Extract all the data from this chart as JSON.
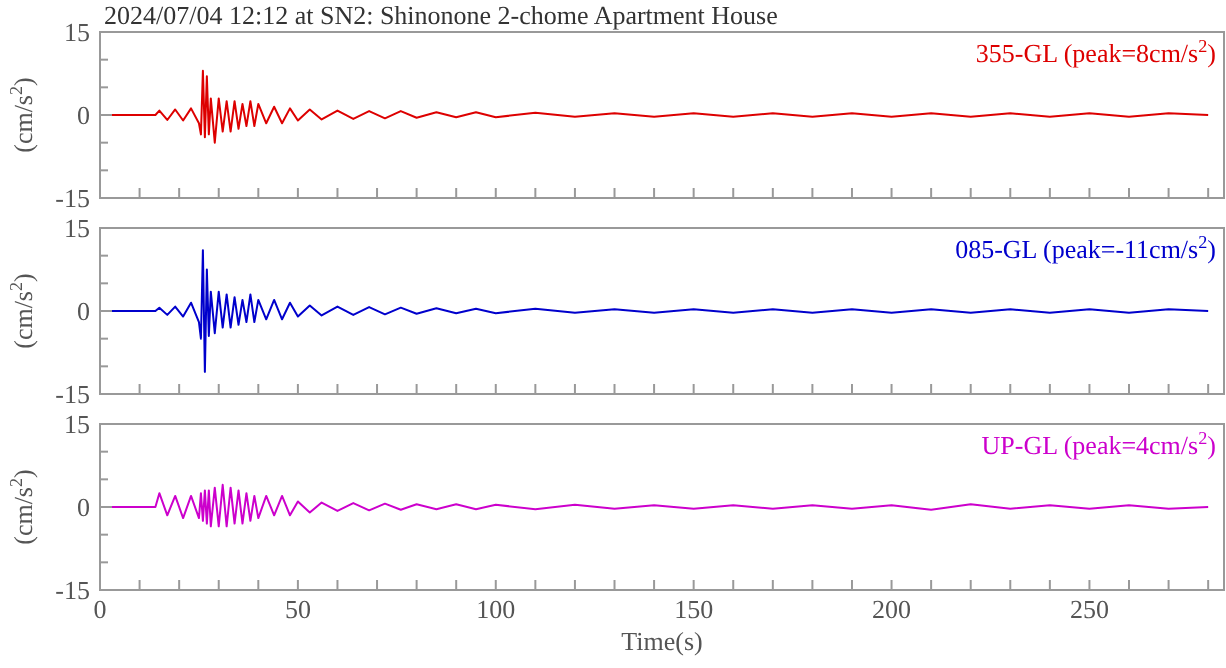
{
  "chart_data": [
    {
      "type": "line",
      "title": "2024/07/04 12:12 at SN2: Shinonone 2-chome Apartment House",
      "ylabel": "(cm/s$^{2}$)",
      "tick_labels": "y",
      "xlim": [
        0,
        284
      ],
      "ylim": [
        -15,
        15
      ],
      "yticks": [
        -15,
        {
          "value": -10,
          "label": null
        },
        {
          "value": -5,
          "label": null
        },
        0,
        {
          "value": 5,
          "label": null
        },
        {
          "value": 10,
          "label": null
        },
        15
      ],
      "xticks": [
        0,
        {
          "value": 10,
          "label": null
        },
        {
          "value": 20,
          "label": null
        },
        {
          "value": 30,
          "label": null
        },
        {
          "value": 40,
          "label": null
        },
        50,
        {
          "value": 60,
          "label": null
        },
        {
          "value": 70,
          "label": null
        },
        {
          "value": 80,
          "label": null
        },
        {
          "value": 90,
          "label": null
        },
        100,
        {
          "value": 110,
          "label": null
        },
        {
          "value": 120,
          "label": null
        },
        {
          "value": 130,
          "label": null
        },
        {
          "value": 140,
          "label": null
        },
        150,
        {
          "value": 160,
          "label": null
        },
        {
          "value": 170,
          "label": null
        },
        {
          "value": 180,
          "label": null
        },
        {
          "value": 190,
          "label": null
        },
        200,
        {
          "value": 210,
          "label": null
        },
        {
          "value": 220,
          "label": null
        },
        {
          "value": 230,
          "label": null
        },
        {
          "value": 240,
          "label": null
        },
        250,
        {
          "value": 260,
          "label": null
        },
        {
          "value": 270,
          "label": null
        },
        {
          "value": 280,
          "label": null
        }
      ],
      "x": [
        0,
        14,
        15,
        17,
        19,
        21,
        23,
        25,
        25.5,
        26,
        26.5,
        27,
        27.5,
        28,
        29,
        30,
        31,
        32,
        33,
        34,
        35,
        36,
        37,
        38,
        39,
        40,
        42,
        44,
        46,
        48,
        50,
        53,
        56,
        60,
        64,
        68,
        72,
        76,
        80,
        85,
        90,
        95,
        100,
        110,
        120,
        130,
        140,
        150,
        160,
        170,
        180,
        190,
        200,
        210,
        220,
        230,
        240,
        250,
        260,
        270,
        280
      ],
      "series": [
        {
          "name": "355-GL (peak=8cm/s$^{2}$)",
          "color": "#dd0000",
          "values": [
            0,
            0,
            0.8,
            -0.9,
            1,
            -1,
            1.2,
            -1.5,
            -3.5,
            8,
            -4,
            7,
            -3.5,
            3,
            -5,
            3,
            -3,
            2.5,
            -3,
            2.5,
            -2.5,
            2,
            -2,
            2.5,
            -2,
            2,
            -1.5,
            1.5,
            -1.5,
            1.2,
            -1,
            1,
            -0.8,
            0.8,
            -0.7,
            0.7,
            -0.6,
            0.7,
            -0.5,
            0.5,
            -0.4,
            0.5,
            -0.4,
            0.4,
            -0.3,
            0.3,
            -0.3,
            0.3,
            -0.3,
            0.3,
            -0.3,
            0.3,
            -0.3,
            0.3,
            -0.3,
            0.3,
            -0.3,
            0.3,
            -0.3,
            0.3,
            0
          ]
        }
      ]
    },
    {
      "type": "line",
      "ylabel": "(cm/s$^{2}$)",
      "tick_labels": "y",
      "xlim": [
        0,
        284
      ],
      "ylim": [
        -15,
        15
      ],
      "yticks": [
        -15,
        {
          "value": -10,
          "label": null
        },
        {
          "value": -5,
          "label": null
        },
        0,
        {
          "value": 5,
          "label": null
        },
        {
          "value": 10,
          "label": null
        },
        15
      ],
      "xticks": [
        0,
        {
          "value": 10,
          "label": null
        },
        {
          "value": 20,
          "label": null
        },
        {
          "value": 30,
          "label": null
        },
        {
          "value": 40,
          "label": null
        },
        50,
        {
          "value": 60,
          "label": null
        },
        {
          "value": 70,
          "label": null
        },
        {
          "value": 80,
          "label": null
        },
        {
          "value": 90,
          "label": null
        },
        100,
        {
          "value": 110,
          "label": null
        },
        {
          "value": 120,
          "label": null
        },
        {
          "value": 130,
          "label": null
        },
        {
          "value": 140,
          "label": null
        },
        150,
        {
          "value": 160,
          "label": null
        },
        {
          "value": 170,
          "label": null
        },
        {
          "value": 180,
          "label": null
        },
        {
          "value": 190,
          "label": null
        },
        200,
        {
          "value": 210,
          "label": null
        },
        {
          "value": 220,
          "label": null
        },
        {
          "value": 230,
          "label": null
        },
        {
          "value": 240,
          "label": null
        },
        250,
        {
          "value": 260,
          "label": null
        },
        {
          "value": 270,
          "label": null
        },
        {
          "value": 280,
          "label": null
        }
      ],
      "x": [
        0,
        14,
        15,
        17,
        19,
        21,
        23,
        25,
        25.5,
        26,
        26.5,
        27,
        27.5,
        28,
        29,
        30,
        31,
        32,
        33,
        34,
        35,
        36,
        37,
        38,
        39,
        40,
        42,
        44,
        46,
        48,
        50,
        53,
        56,
        60,
        64,
        68,
        72,
        76,
        80,
        85,
        90,
        95,
        100,
        110,
        120,
        130,
        140,
        150,
        160,
        170,
        180,
        190,
        200,
        210,
        220,
        230,
        240,
        250,
        260,
        270,
        280
      ],
      "series": [
        {
          "name": "085-GL (peak=-11cm/s$^{2}$)",
          "color": "#0000cc",
          "values": [
            0,
            0,
            0.6,
            -0.7,
            0.8,
            -1,
            1.5,
            -2,
            -5,
            11,
            -11,
            7.5,
            -4.5,
            3.5,
            -4,
            3.5,
            -3,
            3,
            -3,
            2.5,
            -2.5,
            2,
            -2,
            3,
            -2,
            2,
            -1.5,
            2,
            -1.5,
            1.5,
            -1,
            1,
            -0.8,
            0.8,
            -0.7,
            0.7,
            -0.6,
            0.6,
            -0.5,
            0.5,
            -0.4,
            0.4,
            -0.4,
            0.4,
            -0.3,
            0.3,
            -0.3,
            0.3,
            -0.3,
            0.3,
            -0.3,
            0.3,
            -0.3,
            0.3,
            -0.3,
            0.3,
            -0.3,
            0.3,
            -0.3,
            0.3,
            0
          ]
        }
      ]
    },
    {
      "type": "line",
      "ylabel": "(cm/s$^{2}$)",
      "xlabel": "Time(s)",
      "xlim": [
        0,
        284
      ],
      "ylim": [
        -15,
        15
      ],
      "yticks": [
        -15,
        {
          "value": -10,
          "label": null
        },
        {
          "value": -5,
          "label": null
        },
        0,
        {
          "value": 5,
          "label": null
        },
        {
          "value": 10,
          "label": null
        },
        15
      ],
      "xticks": [
        0,
        {
          "value": 10,
          "label": null
        },
        {
          "value": 20,
          "label": null
        },
        {
          "value": 30,
          "label": null
        },
        {
          "value": 40,
          "label": null
        },
        50,
        {
          "value": 60,
          "label": null
        },
        {
          "value": 70,
          "label": null
        },
        {
          "value": 80,
          "label": null
        },
        {
          "value": 90,
          "label": null
        },
        100,
        {
          "value": 110,
          "label": null
        },
        {
          "value": 120,
          "label": null
        },
        {
          "value": 130,
          "label": null
        },
        {
          "value": 140,
          "label": null
        },
        150,
        {
          "value": 160,
          "label": null
        },
        {
          "value": 170,
          "label": null
        },
        {
          "value": 180,
          "label": null
        },
        {
          "value": 190,
          "label": null
        },
        200,
        {
          "value": 210,
          "label": null
        },
        {
          "value": 220,
          "label": null
        },
        {
          "value": 230,
          "label": null
        },
        {
          "value": 240,
          "label": null
        },
        250,
        {
          "value": 260,
          "label": null
        },
        {
          "value": 270,
          "label": null
        },
        {
          "value": 280,
          "label": null
        }
      ],
      "x": [
        0,
        14,
        15,
        17,
        19,
        21,
        23,
        25,
        25.5,
        26,
        26.5,
        27,
        27.5,
        28,
        29,
        30,
        31,
        32,
        33,
        34,
        35,
        36,
        37,
        38,
        39,
        40,
        42,
        44,
        46,
        48,
        50,
        53,
        56,
        60,
        64,
        68,
        72,
        76,
        80,
        85,
        90,
        95,
        100,
        110,
        120,
        130,
        140,
        150,
        160,
        170,
        180,
        190,
        200,
        210,
        220,
        230,
        240,
        250,
        260,
        270,
        280
      ],
      "series": [
        {
          "name": "UP-GL (peak=4cm/s$^{2}$)",
          "color": "#cc00cc",
          "values": [
            0,
            0,
            2.5,
            -1.5,
            2,
            -2,
            2,
            -2,
            2.5,
            -2.5,
            3,
            -3,
            3,
            -3.5,
            3.5,
            -3.5,
            4,
            -3.5,
            3.5,
            -3,
            3,
            -3,
            2.5,
            -2.5,
            2,
            -2,
            2,
            -1.5,
            2,
            -1.5,
            1,
            -1,
            0.8,
            -0.7,
            0.7,
            -0.6,
            0.6,
            -0.5,
            0.5,
            -0.4,
            0.5,
            -0.4,
            0.4,
            -0.4,
            0.4,
            -0.3,
            0.3,
            -0.3,
            0.3,
            -0.3,
            0.3,
            -0.3,
            0.3,
            -0.5,
            0.5,
            -0.3,
            0.3,
            -0.3,
            0.3,
            -0.3,
            0
          ]
        }
      ]
    }
  ]
}
